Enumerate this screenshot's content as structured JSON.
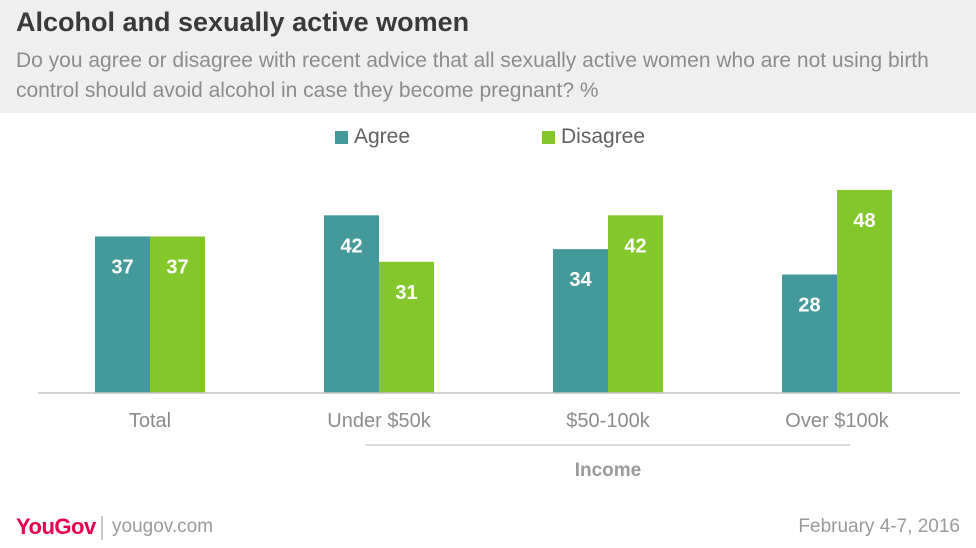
{
  "title": "Alcohol and sexually active women",
  "subtitle": "Do you agree or disagree with recent advice that all sexually active women who are not using birth control should avoid alcohol in case they become pregnant? %",
  "colors": {
    "agree": "#44999b",
    "disagree": "#84c72a"
  },
  "chart_data": {
    "type": "bar",
    "categories": [
      "Total",
      "Under $50k",
      "$50-100k",
      "Over $100k"
    ],
    "series": [
      {
        "name": "Agree",
        "values": [
          37,
          42,
          34,
          28
        ]
      },
      {
        "name": "Disagree",
        "values": [
          37,
          31,
          42,
          48
        ]
      }
    ],
    "group_label": "Income",
    "ylim": [
      0,
      52
    ],
    "legend": "top-center",
    "grid": false
  },
  "footer": {
    "brand": "YouGov",
    "url": "yougov.com",
    "date": "February 4-7, 2016"
  }
}
